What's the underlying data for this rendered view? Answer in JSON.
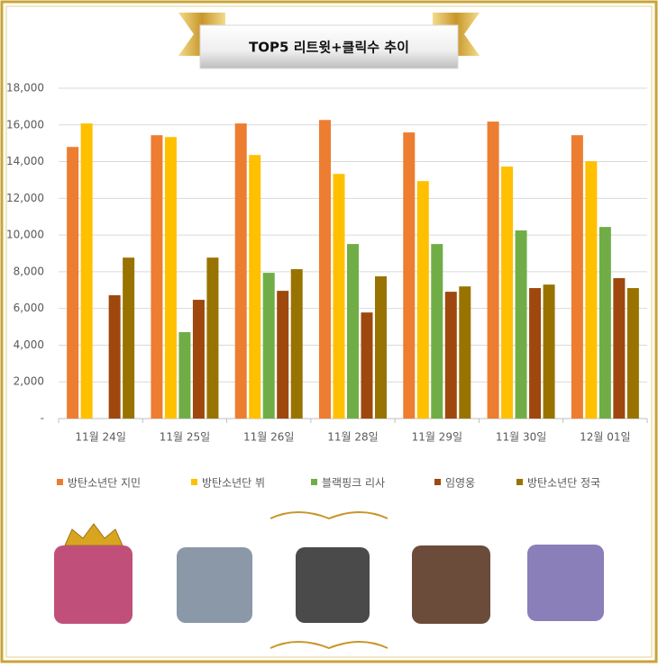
{
  "chart_data": {
    "type": "bar",
    "title": "TOP5 리트윗+클릭수 추이",
    "categories": [
      "11월 24일",
      "11월 25일",
      "11월 26일",
      "11월 28일",
      "11월 29일",
      "11월 30일",
      "12월 01일"
    ],
    "series": [
      {
        "name": "방탄소년단 지민",
        "color": "#ed7d31",
        "values": [
          14800,
          15440,
          16080,
          16270,
          15590,
          16180,
          15440
        ]
      },
      {
        "name": "방탄소년단 뷔",
        "color": "#ffc000",
        "values": [
          16080,
          15340,
          14360,
          13330,
          12940,
          13730,
          14020
        ]
      },
      {
        "name": "블랙핑크 리사",
        "color": "#70ad47",
        "values": [
          null,
          4710,
          7940,
          9510,
          9510,
          10250,
          10440
        ]
      },
      {
        "name": "임영웅",
        "color": "#9e480e",
        "values": [
          6720,
          6470,
          6960,
          5780,
          6910,
          7110,
          7650
        ]
      },
      {
        "name": "방탄소년단 정국",
        "color": "#997300",
        "values": [
          8770,
          8770,
          8140,
          7750,
          7200,
          7300,
          7110
        ]
      }
    ],
    "ylim": [
      0,
      18000
    ],
    "yticks": [
      {
        "value": 0,
        "label": "-"
      },
      {
        "value": 2000,
        "label": "2,000"
      },
      {
        "value": 4000,
        "label": "4,000"
      },
      {
        "value": 6000,
        "label": "6,000"
      },
      {
        "value": 8000,
        "label": "8,000"
      },
      {
        "value": 10000,
        "label": "10,000"
      },
      {
        "value": 12000,
        "label": "12,000"
      },
      {
        "value": 14000,
        "label": "14,000"
      },
      {
        "value": 16000,
        "label": "16,000"
      },
      {
        "value": 18000,
        "label": "18,000"
      }
    ],
    "grid": true
  }
}
